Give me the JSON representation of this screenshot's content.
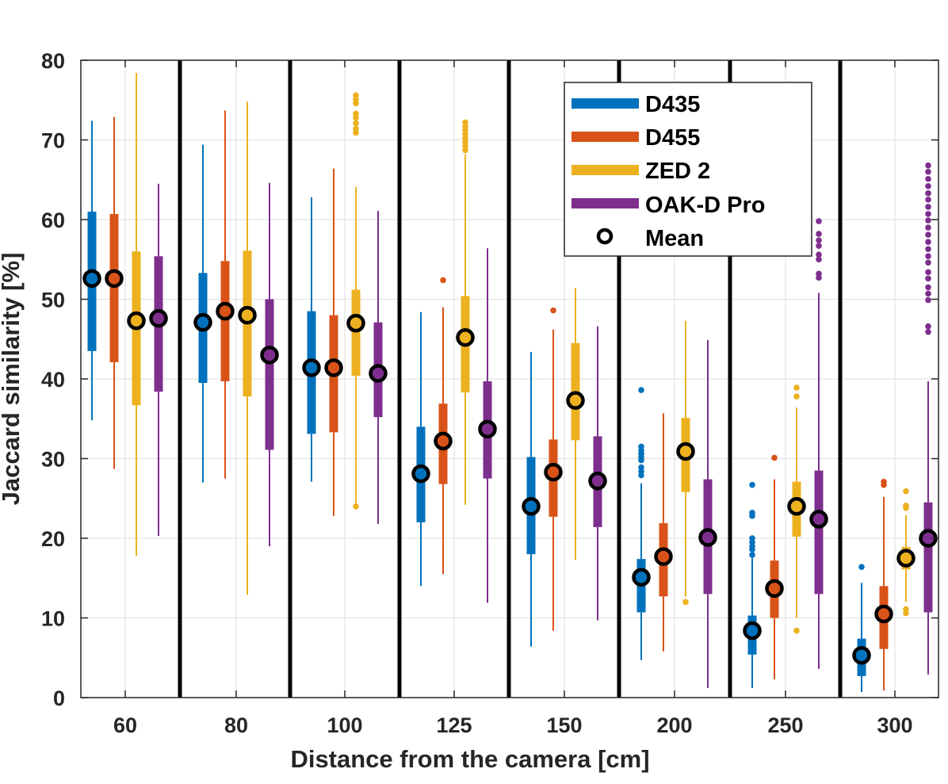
{
  "chart_data": {
    "type": "boxplot",
    "title": "",
    "xlabel": "Distance from the camera [cm]",
    "ylabel": "Jaccard similarity [%]",
    "ylim": [
      0,
      80
    ],
    "yticks": [
      0,
      10,
      20,
      30,
      40,
      50,
      60,
      70,
      80
    ],
    "categories": [
      "60",
      "80",
      "100",
      "125",
      "150",
      "200",
      "250",
      "300"
    ],
    "grid": true,
    "legend_position": "top-right",
    "mean_label": "Mean",
    "series": [
      {
        "name": "D435",
        "color": "#0072BD",
        "groups": [
          {
            "whisker_low": 34.8,
            "q1": 43.5,
            "q3": 61.0,
            "whisker_high": 72.4,
            "mean": 52.6,
            "outliers": []
          },
          {
            "whisker_low": 27.0,
            "q1": 39.5,
            "q3": 53.3,
            "whisker_high": 69.4,
            "mean": 47.1,
            "outliers": []
          },
          {
            "whisker_low": 27.1,
            "q1": 33.1,
            "q3": 48.5,
            "whisker_high": 62.8,
            "mean": 41.4,
            "outliers": []
          },
          {
            "whisker_low": 14.0,
            "q1": 22.0,
            "q3": 34.0,
            "whisker_high": 48.4,
            "mean": 28.1,
            "outliers": []
          },
          {
            "whisker_low": 6.4,
            "q1": 18.0,
            "q3": 30.2,
            "whisker_high": 43.4,
            "mean": 24.0,
            "outliers": []
          },
          {
            "whisker_low": 4.7,
            "q1": 10.7,
            "q3": 17.4,
            "whisker_high": 26.9,
            "mean": 15.1,
            "outliers": [
              27.9,
              28.4,
              28.9,
              29.8,
              30.2,
              30.6,
              31.0,
              31.5,
              38.6
            ]
          },
          {
            "whisker_low": 1.2,
            "q1": 5.4,
            "q3": 10.3,
            "whisker_high": 17.5,
            "mean": 8.4,
            "outliers": [
              17.9,
              18.6,
              19.0,
              19.5,
              20.0,
              22.8,
              23.2,
              26.7
            ]
          },
          {
            "whisker_low": 0.7,
            "q1": 2.7,
            "q3": 7.4,
            "whisker_high": 14.4,
            "mean": 5.3,
            "outliers": [
              16.4
            ]
          }
        ]
      },
      {
        "name": "D455",
        "color": "#D95319",
        "groups": [
          {
            "whisker_low": 28.7,
            "q1": 42.1,
            "q3": 60.7,
            "whisker_high": 72.9,
            "mean": 52.6,
            "outliers": []
          },
          {
            "whisker_low": 27.5,
            "q1": 39.7,
            "q3": 54.8,
            "whisker_high": 73.7,
            "mean": 48.5,
            "outliers": []
          },
          {
            "whisker_low": 22.8,
            "q1": 33.3,
            "q3": 48.0,
            "whisker_high": 66.4,
            "mean": 41.4,
            "outliers": []
          },
          {
            "whisker_low": 15.5,
            "q1": 26.8,
            "q3": 36.9,
            "whisker_high": 49.0,
            "mean": 32.2,
            "outliers": [
              52.4
            ]
          },
          {
            "whisker_low": 8.4,
            "q1": 22.7,
            "q3": 32.4,
            "whisker_high": 46.2,
            "mean": 28.3,
            "outliers": [
              48.6
            ]
          },
          {
            "whisker_low": 5.8,
            "q1": 12.7,
            "q3": 21.9,
            "whisker_high": 35.7,
            "mean": 17.7,
            "outliers": []
          },
          {
            "whisker_low": 2.3,
            "q1": 10.0,
            "q3": 17.2,
            "whisker_high": 27.4,
            "mean": 13.7,
            "outliers": [
              30.1
            ]
          },
          {
            "whisker_low": 0.9,
            "q1": 6.1,
            "q3": 14.0,
            "whisker_high": 25.2,
            "mean": 10.5,
            "outliers": [
              26.7,
              27.1
            ]
          }
        ]
      },
      {
        "name": "ZED 2",
        "color": "#EDB120",
        "groups": [
          {
            "whisker_low": 17.8,
            "q1": 36.7,
            "q3": 56.0,
            "whisker_high": 78.4,
            "mean": 47.3,
            "outliers": []
          },
          {
            "whisker_low": 12.9,
            "q1": 37.8,
            "q3": 56.1,
            "whisker_high": 74.8,
            "mean": 48.0,
            "outliers": []
          },
          {
            "whisker_low": 24.2,
            "q1": 40.4,
            "q3": 51.2,
            "whisker_high": 64.1,
            "mean": 47.0,
            "outliers": [
              24.0,
              70.9,
              71.4,
              72.1,
              72.8,
              73.3,
              74.6,
              75.1,
              75.6
            ]
          },
          {
            "whisker_low": 24.2,
            "q1": 38.3,
            "q3": 50.4,
            "whisker_high": 68.2,
            "mean": 45.2,
            "outliers": [
              68.7,
              69.2,
              69.7,
              70.2,
              70.7,
              71.2,
              71.7,
              72.2
            ]
          },
          {
            "whisker_low": 17.3,
            "q1": 32.3,
            "q3": 44.5,
            "whisker_high": 51.4,
            "mean": 37.3,
            "outliers": []
          },
          {
            "whisker_low": 12.7,
            "q1": 25.8,
            "q3": 35.1,
            "whisker_high": 47.3,
            "mean": 30.9,
            "outliers": [
              12.0
            ]
          },
          {
            "whisker_low": 10.0,
            "q1": 20.2,
            "q3": 27.1,
            "whisker_high": 36.4,
            "mean": 24.0,
            "outliers": [
              8.4,
              37.8,
              38.9
            ]
          },
          {
            "whisker_low": 12.0,
            "q1": 16.1,
            "q3": 18.9,
            "whisker_high": 22.9,
            "mean": 17.5,
            "outliers": [
              10.6,
              11.1,
              23.8,
              24.1,
              25.9
            ]
          }
        ]
      },
      {
        "name": "OAK-D Pro",
        "color": "#7E2F8E",
        "groups": [
          {
            "whisker_low": 20.3,
            "q1": 38.4,
            "q3": 55.4,
            "whisker_high": 64.5,
            "mean": 47.6,
            "outliers": []
          },
          {
            "whisker_low": 19.0,
            "q1": 31.1,
            "q3": 50.0,
            "whisker_high": 64.6,
            "mean": 43.0,
            "outliers": []
          },
          {
            "whisker_low": 21.8,
            "q1": 35.2,
            "q3": 47.1,
            "whisker_high": 61.1,
            "mean": 40.7,
            "outliers": []
          },
          {
            "whisker_low": 11.9,
            "q1": 27.5,
            "q3": 39.7,
            "whisker_high": 56.4,
            "mean": 33.7,
            "outliers": []
          },
          {
            "whisker_low": 9.7,
            "q1": 21.4,
            "q3": 32.8,
            "whisker_high": 46.6,
            "mean": 27.2,
            "outliers": []
          },
          {
            "whisker_low": 1.2,
            "q1": 13.0,
            "q3": 27.4,
            "whisker_high": 44.9,
            "mean": 20.1,
            "outliers": []
          },
          {
            "whisker_low": 3.6,
            "q1": 13.0,
            "q3": 28.5,
            "whisker_high": 50.8,
            "mean": 22.4,
            "outliers": [
              52.7,
              53.2,
              55.0,
              55.6,
              56.7,
              57.4,
              58.2,
              59.8
            ]
          },
          {
            "whisker_low": 2.9,
            "q1": 10.7,
            "q3": 24.5,
            "whisker_high": 39.7,
            "mean": 20.0,
            "outliers": [
              45.9,
              46.6,
              49.9,
              50.7,
              51.5,
              52.6,
              53.4,
              54.6,
              55.4,
              56.3,
              57.2,
              58.1,
              59.0,
              59.9,
              60.7,
              61.6,
              62.5,
              63.3,
              64.2,
              65.1,
              66.0,
              66.8
            ]
          }
        ]
      }
    ]
  }
}
